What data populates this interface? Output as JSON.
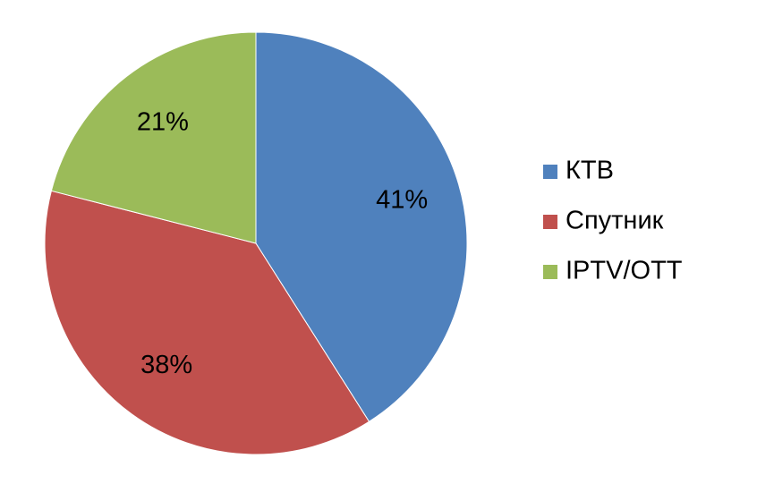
{
  "chart_data": {
    "type": "pie",
    "categories": [
      "КТВ",
      "Спутник",
      "IPTV/OTT"
    ],
    "values": [
      41,
      38,
      21
    ],
    "value_labels": [
      "41%",
      "38%",
      "21%"
    ],
    "colors": [
      "#4f81bd",
      "#c0504d",
      "#9bbb59"
    ]
  }
}
